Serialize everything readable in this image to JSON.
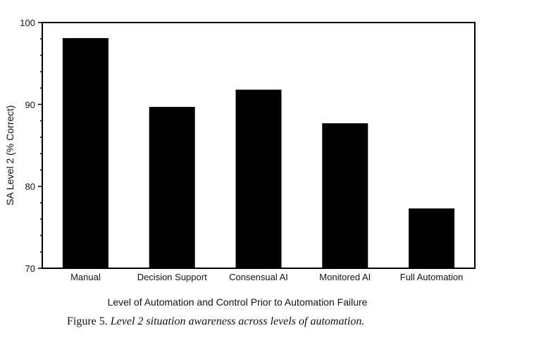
{
  "chart_data": {
    "type": "bar",
    "categories": [
      "Manual",
      "Decision Support",
      "Consensual AI",
      "Monitored AI",
      "Full Automation"
    ],
    "values": [
      98.1,
      89.7,
      91.8,
      87.7,
      77.3
    ],
    "xlabel": "Level of Automation and Control Prior to Automation Failure",
    "ylabel": "SA Level 2 (% Correct)",
    "ylim": [
      70,
      100
    ],
    "yticks": [
      70,
      80,
      90,
      100
    ],
    "grid": false,
    "bar_color": "#000000"
  },
  "caption": {
    "label": "Figure 5.",
    "text": "Level 2 situation awareness across levels of automation."
  }
}
